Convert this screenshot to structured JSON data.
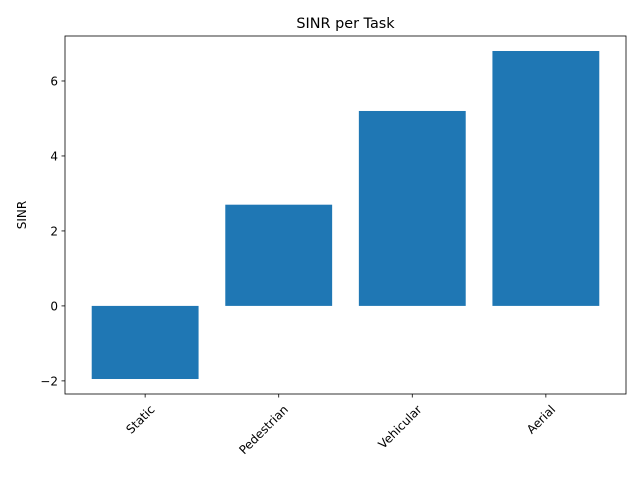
{
  "chart_data": {
    "type": "bar",
    "title": "SINR per Task",
    "xlabel": "",
    "ylabel": "SINR",
    "categories": [
      "Static",
      "Pedestrian",
      "Vehicular",
      "Aerial"
    ],
    "values": [
      -1.95,
      2.7,
      5.2,
      6.8
    ],
    "ylim": [
      -2.35,
      7.2
    ],
    "yticks": [
      -2,
      0,
      2,
      4,
      6
    ],
    "ytick_labels": [
      "−2",
      "0",
      "2",
      "4",
      "6"
    ],
    "xtick_rotation_deg": 45,
    "bar_color": "#1f77b4",
    "grid": false,
    "legend": "none"
  }
}
